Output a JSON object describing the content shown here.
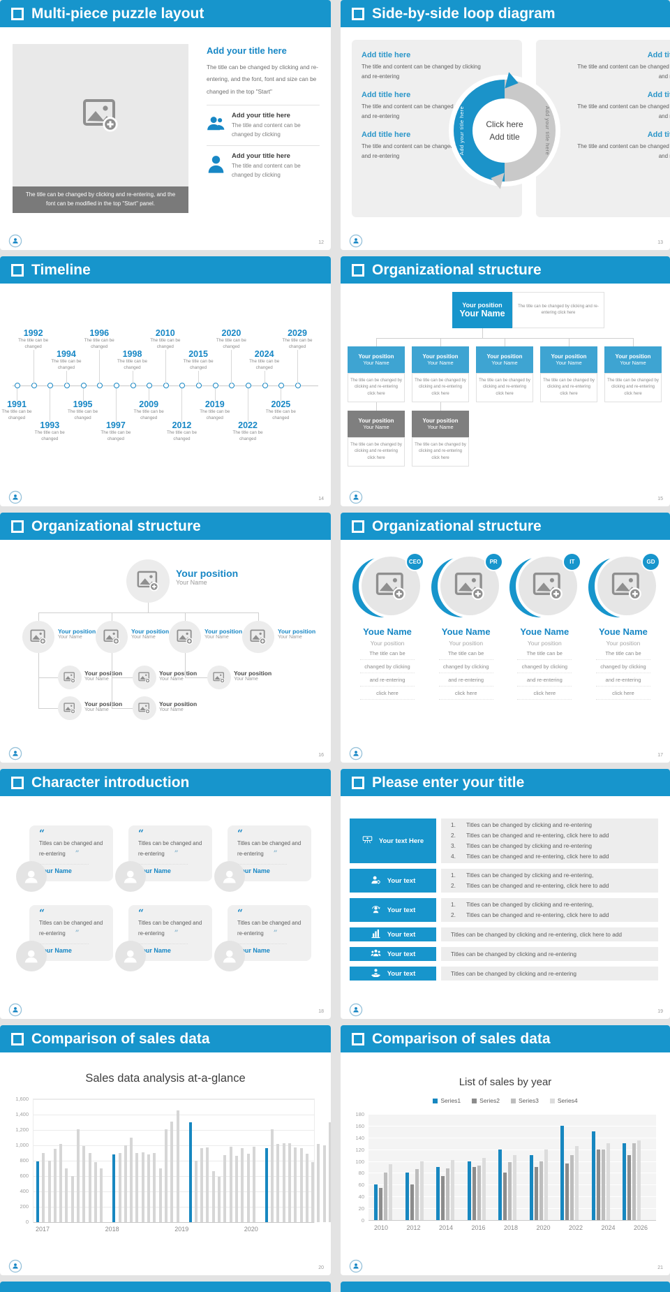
{
  "slides": {
    "puzzle": {
      "title": "Multi-piece puzzle layout",
      "page": "12",
      "image_caption": "The title can be changed by clicking and re-entering, and the font can be modified in the top \"Start\" panel.",
      "heading": "Add your title here",
      "paragraph": "The title can be changed by clicking and re-entering, and the font, font and size can be changed in the top \"Start\"",
      "items": [
        {
          "icon": "two-people",
          "title": "Add your title here",
          "text": "The title and content can be changed by clicking"
        },
        {
          "icon": "one-person",
          "title": "Add your title here",
          "text": "The title and content can be changed by clicking"
        }
      ]
    },
    "loop": {
      "title": "Side-by-side loop diagram",
      "page": "13",
      "item_heading": "Add title here",
      "item_text": "The title and content can be changed by clicking and re-entering",
      "left_items": 3,
      "right_items": 3,
      "center_lines": [
        "Click here",
        "Add title"
      ],
      "arc_left_label": "Add your title here",
      "arc_right_label": "Add your title here"
    },
    "timeline": {
      "title": "Timeline",
      "page": "14",
      "node_text": "The title can be changed",
      "nodes": [
        {
          "year": "1991",
          "side": "bottom",
          "far": false
        },
        {
          "year": "1992",
          "side": "top",
          "far": true
        },
        {
          "year": "1993",
          "side": "bottom",
          "far": true
        },
        {
          "year": "1994",
          "side": "top",
          "far": false
        },
        {
          "year": "1995",
          "side": "bottom",
          "far": false
        },
        {
          "year": "1996",
          "side": "top",
          "far": true
        },
        {
          "year": "1997",
          "side": "bottom",
          "far": true
        },
        {
          "year": "1998",
          "side": "top",
          "far": false
        },
        {
          "year": "2009",
          "side": "bottom",
          "far": false
        },
        {
          "year": "2010",
          "side": "top",
          "far": true
        },
        {
          "year": "2012",
          "side": "bottom",
          "far": true
        },
        {
          "year": "2015",
          "side": "top",
          "far": false
        },
        {
          "year": "2019",
          "side": "bottom",
          "far": false
        },
        {
          "year": "2020",
          "side": "top",
          "far": true
        },
        {
          "year": "2022",
          "side": "bottom",
          "far": true
        },
        {
          "year": "2024",
          "side": "top",
          "far": false
        },
        {
          "year": "2025",
          "side": "bottom",
          "far": false
        },
        {
          "year": "2029",
          "side": "top",
          "far": true
        }
      ]
    },
    "org_boxes": {
      "title": "Organizational structure",
      "page": "15",
      "position": "Your position",
      "name": "Your Name",
      "note": "The title can be changed by clicking and re-entering click here",
      "children_count": 5,
      "gray_count": 2
    },
    "org_circles": {
      "title": "Organizational structure",
      "page": "16",
      "position": "Your position",
      "name": "Your Name",
      "level1_count": 4,
      "level2_count": 3,
      "level3_count": 2
    },
    "org_people": {
      "title": "Organizational structure",
      "page": "17",
      "body_lines": [
        "The title can be",
        "changed by clicking",
        "and re-entering",
        "click here"
      ],
      "people": [
        {
          "badge": "CEO",
          "name": "Youe Name",
          "position": "Your position"
        },
        {
          "badge": "PR",
          "name": "Youe Name",
          "position": "Your position"
        },
        {
          "badge": "IT",
          "name": "Youe Name",
          "position": "Your position"
        },
        {
          "badge": "GD",
          "name": "Youe Name",
          "position": "Your position"
        }
      ]
    },
    "characters": {
      "title": "Character introduction",
      "page": "18",
      "open_quote": "“",
      "close_quote": "”",
      "cards": [
        {
          "text": "Titles can be changed and re-entering",
          "name": "Your Name"
        },
        {
          "text": "Titles can be changed and re-entering",
          "name": "Your Name"
        },
        {
          "text": "Titles can be changed and re-entering",
          "name": "Your Name"
        },
        {
          "text": "Titles can be changed and re-entering",
          "name": "Your Name"
        },
        {
          "text": "Titles can be changed and re-entering",
          "name": "Your Name"
        },
        {
          "text": "Titles can be changed and re-entering",
          "name": "Your Name"
        }
      ]
    },
    "list": {
      "title": "Please enter your title",
      "page": "19",
      "rows": [
        {
          "icon": "meeting",
          "label": "Your text Here",
          "numbered": true,
          "items": [
            "Titles can be changed by clicking and re-entering",
            "Titles can be changed and re-entering, click here to add",
            "Titles can be changed by clicking and re-entering",
            "Titles can be changed and re-entering, click here to add"
          ]
        },
        {
          "icon": "person-gear",
          "label": "Your text",
          "numbered": true,
          "items": [
            "Titles can be changed by clicking and re-entering,",
            "Titles can be changed and re-entering, click here to add"
          ]
        },
        {
          "icon": "person-sync",
          "label": "Your text",
          "numbered": true,
          "items": [
            "Titles can be changed by clicking and re-entering,",
            "Titles can be changed and re-entering, click here to add"
          ]
        },
        {
          "icon": "bar-chart",
          "label": "Your text",
          "numbered": false,
          "items": [
            "Titles can be changed by clicking and re-entering, click here to add"
          ]
        },
        {
          "icon": "team",
          "label": "Your text",
          "numbered": false,
          "items": [
            "Titles can be changed by clicking and re-entering"
          ]
        },
        {
          "icon": "person-care",
          "label": "Your text",
          "numbered": false,
          "items": [
            "Titles can be changed by clicking and re-entering"
          ]
        }
      ]
    },
    "chart1": {
      "title": "Comparison of sales data",
      "page": "20"
    },
    "chart2": {
      "title": "Comparison of sales data",
      "page": "21"
    }
  },
  "chart_data": [
    {
      "type": "bar",
      "title": "Sales data analysis at-a-glance",
      "ylim": [
        0,
        1600
      ],
      "ytick_step": 200,
      "ytick_labels": [
        "0",
        "200",
        "400",
        "600",
        "800",
        "1,000",
        "1,200",
        "1,400",
        "1,600"
      ],
      "categories": [
        "2017",
        "2018",
        "2019",
        "2020"
      ],
      "grid": true,
      "legend": null,
      "highlight_first_bar_color": "#1787c0",
      "bar_color": "#d6d6d6",
      "groups": [
        [
          790,
          900,
          800,
          950,
          1020,
          700,
          600,
          1210,
          990,
          900,
          780,
          700
        ],
        [
          880,
          900,
          1000,
          1100,
          900,
          905,
          880,
          900,
          700,
          1210,
          1310,
          1450
        ],
        [
          1300,
          800,
          960,
          970,
          660,
          590,
          870,
          980,
          860,
          960,
          890,
          980
        ],
        [
          960,
          1210,
          1020,
          1030,
          1030,
          970,
          960,
          890,
          780,
          1020,
          1000,
          1300
        ]
      ]
    },
    {
      "type": "bar",
      "title": "List of sales by year",
      "ylim": [
        0,
        180
      ],
      "ytick_step": 20,
      "ytick_labels": [
        "0",
        "20",
        "40",
        "60",
        "80",
        "100",
        "120",
        "140",
        "160",
        "180"
      ],
      "categories": [
        "2010",
        "2012",
        "2014",
        "2016",
        "2018",
        "2020",
        "2022",
        "2024",
        "2026"
      ],
      "grid": true,
      "legend_position": "top",
      "series": [
        {
          "name": "Series1",
          "color": "#1787c0",
          "values": [
            60,
            80,
            90,
            100,
            120,
            110,
            160,
            150,
            130
          ]
        },
        {
          "name": "Series2",
          "color": "#8c8c8c",
          "values": [
            55,
            60,
            75,
            90,
            80,
            90,
            96,
            120,
            110
          ]
        },
        {
          "name": "Series3",
          "color": "#bdbdbd",
          "values": [
            80,
            86,
            88,
            92,
            98,
            100,
            110,
            120,
            130
          ]
        },
        {
          "name": "Series4",
          "color": "#dcdcdc",
          "values": [
            95,
            99,
            102,
            105,
            110,
            120,
            126,
            130,
            135
          ]
        }
      ]
    }
  ]
}
